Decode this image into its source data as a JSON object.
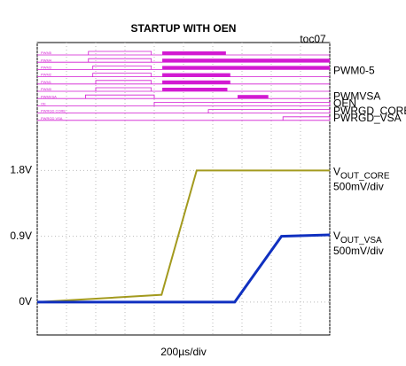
{
  "chart_data": {
    "type": "scope",
    "title": "STARTUP WITH OEN",
    "figure_id": "toc07",
    "x_label": "200µs/div",
    "xlim": [
      0,
      2000
    ],
    "xticks": [
      0,
      200,
      400,
      600,
      800,
      1000,
      1200,
      1400,
      1600,
      1800,
      2000
    ],
    "ylim": [
      -0.45,
      3.55
    ],
    "yticks": [
      {
        "value": 1.8,
        "label": "1.8V"
      },
      {
        "value": 0.9,
        "label": "0.9V"
      },
      {
        "value": 0,
        "label": "0V"
      }
    ],
    "grid": true,
    "digital_color": "#d21ad2",
    "digital": [
      {
        "name": "PWM5",
        "high": [
          [
            350,
            780
          ]
        ],
        "switching": [
          [
            855,
            1290
          ]
        ]
      },
      {
        "name": "PWM4",
        "high": [
          [
            350,
            780
          ]
        ],
        "switching": [
          [
            855,
            2000
          ]
        ]
      },
      {
        "name": "PWM3",
        "high": [
          [
            380,
            780
          ]
        ],
        "switching": [
          [
            855,
            2000
          ]
        ]
      },
      {
        "name": "PWM2",
        "high": [
          [
            380,
            780
          ]
        ],
        "switching": [
          [
            855,
            1320
          ]
        ]
      },
      {
        "name": "PWM1",
        "high": [
          [
            400,
            780
          ]
        ],
        "switching": [
          [
            855,
            1320
          ]
        ]
      },
      {
        "name": "PWM0",
        "high": [
          [
            400,
            780
          ]
        ],
        "switching": [
          [
            855,
            1300
          ]
        ]
      },
      {
        "name": "PWMVSA",
        "high": [
          [
            330,
            800
          ]
        ],
        "switching": [
          [
            1370,
            1580
          ]
        ]
      },
      {
        "name": "OE",
        "high": [
          [
            800,
            2000
          ]
        ],
        "switching": []
      },
      {
        "name": "PWRGD CORE",
        "high": [
          [
            1170,
            2000
          ]
        ],
        "switching": []
      },
      {
        "name": "PWRGD VSA",
        "high": [
          [
            1680,
            2000
          ]
        ],
        "switching": []
      }
    ],
    "group_labels": [
      "PWM0-5",
      "PWMVSA",
      "OEN",
      "PWRGD_CORE",
      "PWRGD_VSA"
    ],
    "series": [
      {
        "name": {
          "main": "V",
          "sub": "OUT_CORE"
        },
        "scale": "500mV/div",
        "color": "#a39a1e",
        "x": [
          0,
          850,
          1090,
          2000
        ],
        "values": [
          0,
          0.1,
          1.8,
          1.8
        ]
      },
      {
        "name": {
          "main": "V",
          "sub": "OUT_VSA"
        },
        "scale": "500mV/div",
        "color": "#1030c0",
        "x": [
          0,
          1350,
          1670,
          2000
        ],
        "values": [
          0,
          0,
          0.9,
          0.92
        ]
      }
    ]
  }
}
